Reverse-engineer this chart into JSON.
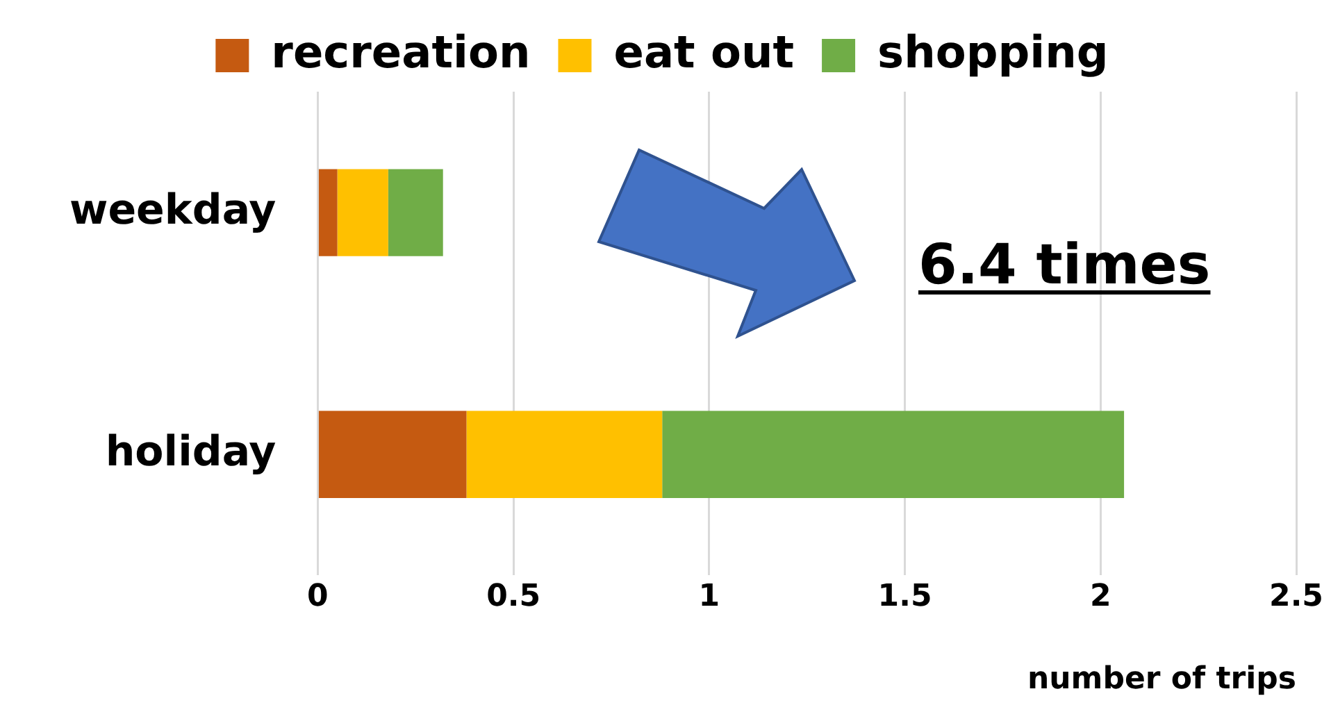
{
  "chart_data": {
    "type": "bar",
    "orientation": "horizontal",
    "stacked": true,
    "categories": [
      "weekday",
      "holiday"
    ],
    "series": [
      {
        "name": "recreation",
        "color": "#c55a11",
        "values": [
          0.05,
          0.38
        ]
      },
      {
        "name": "eat out",
        "color": "#ffc000",
        "values": [
          0.13,
          0.5
        ]
      },
      {
        "name": "shopping",
        "color": "#70ad47",
        "values": [
          0.14,
          1.18
        ]
      }
    ],
    "xlim": [
      0,
      2.5
    ],
    "xticks": [
      0,
      0.5,
      1,
      1.5,
      2,
      2.5
    ],
    "xlabel": "number of trips",
    "grid": "x",
    "legend": "top",
    "annotations": [
      "6.4 times"
    ]
  }
}
